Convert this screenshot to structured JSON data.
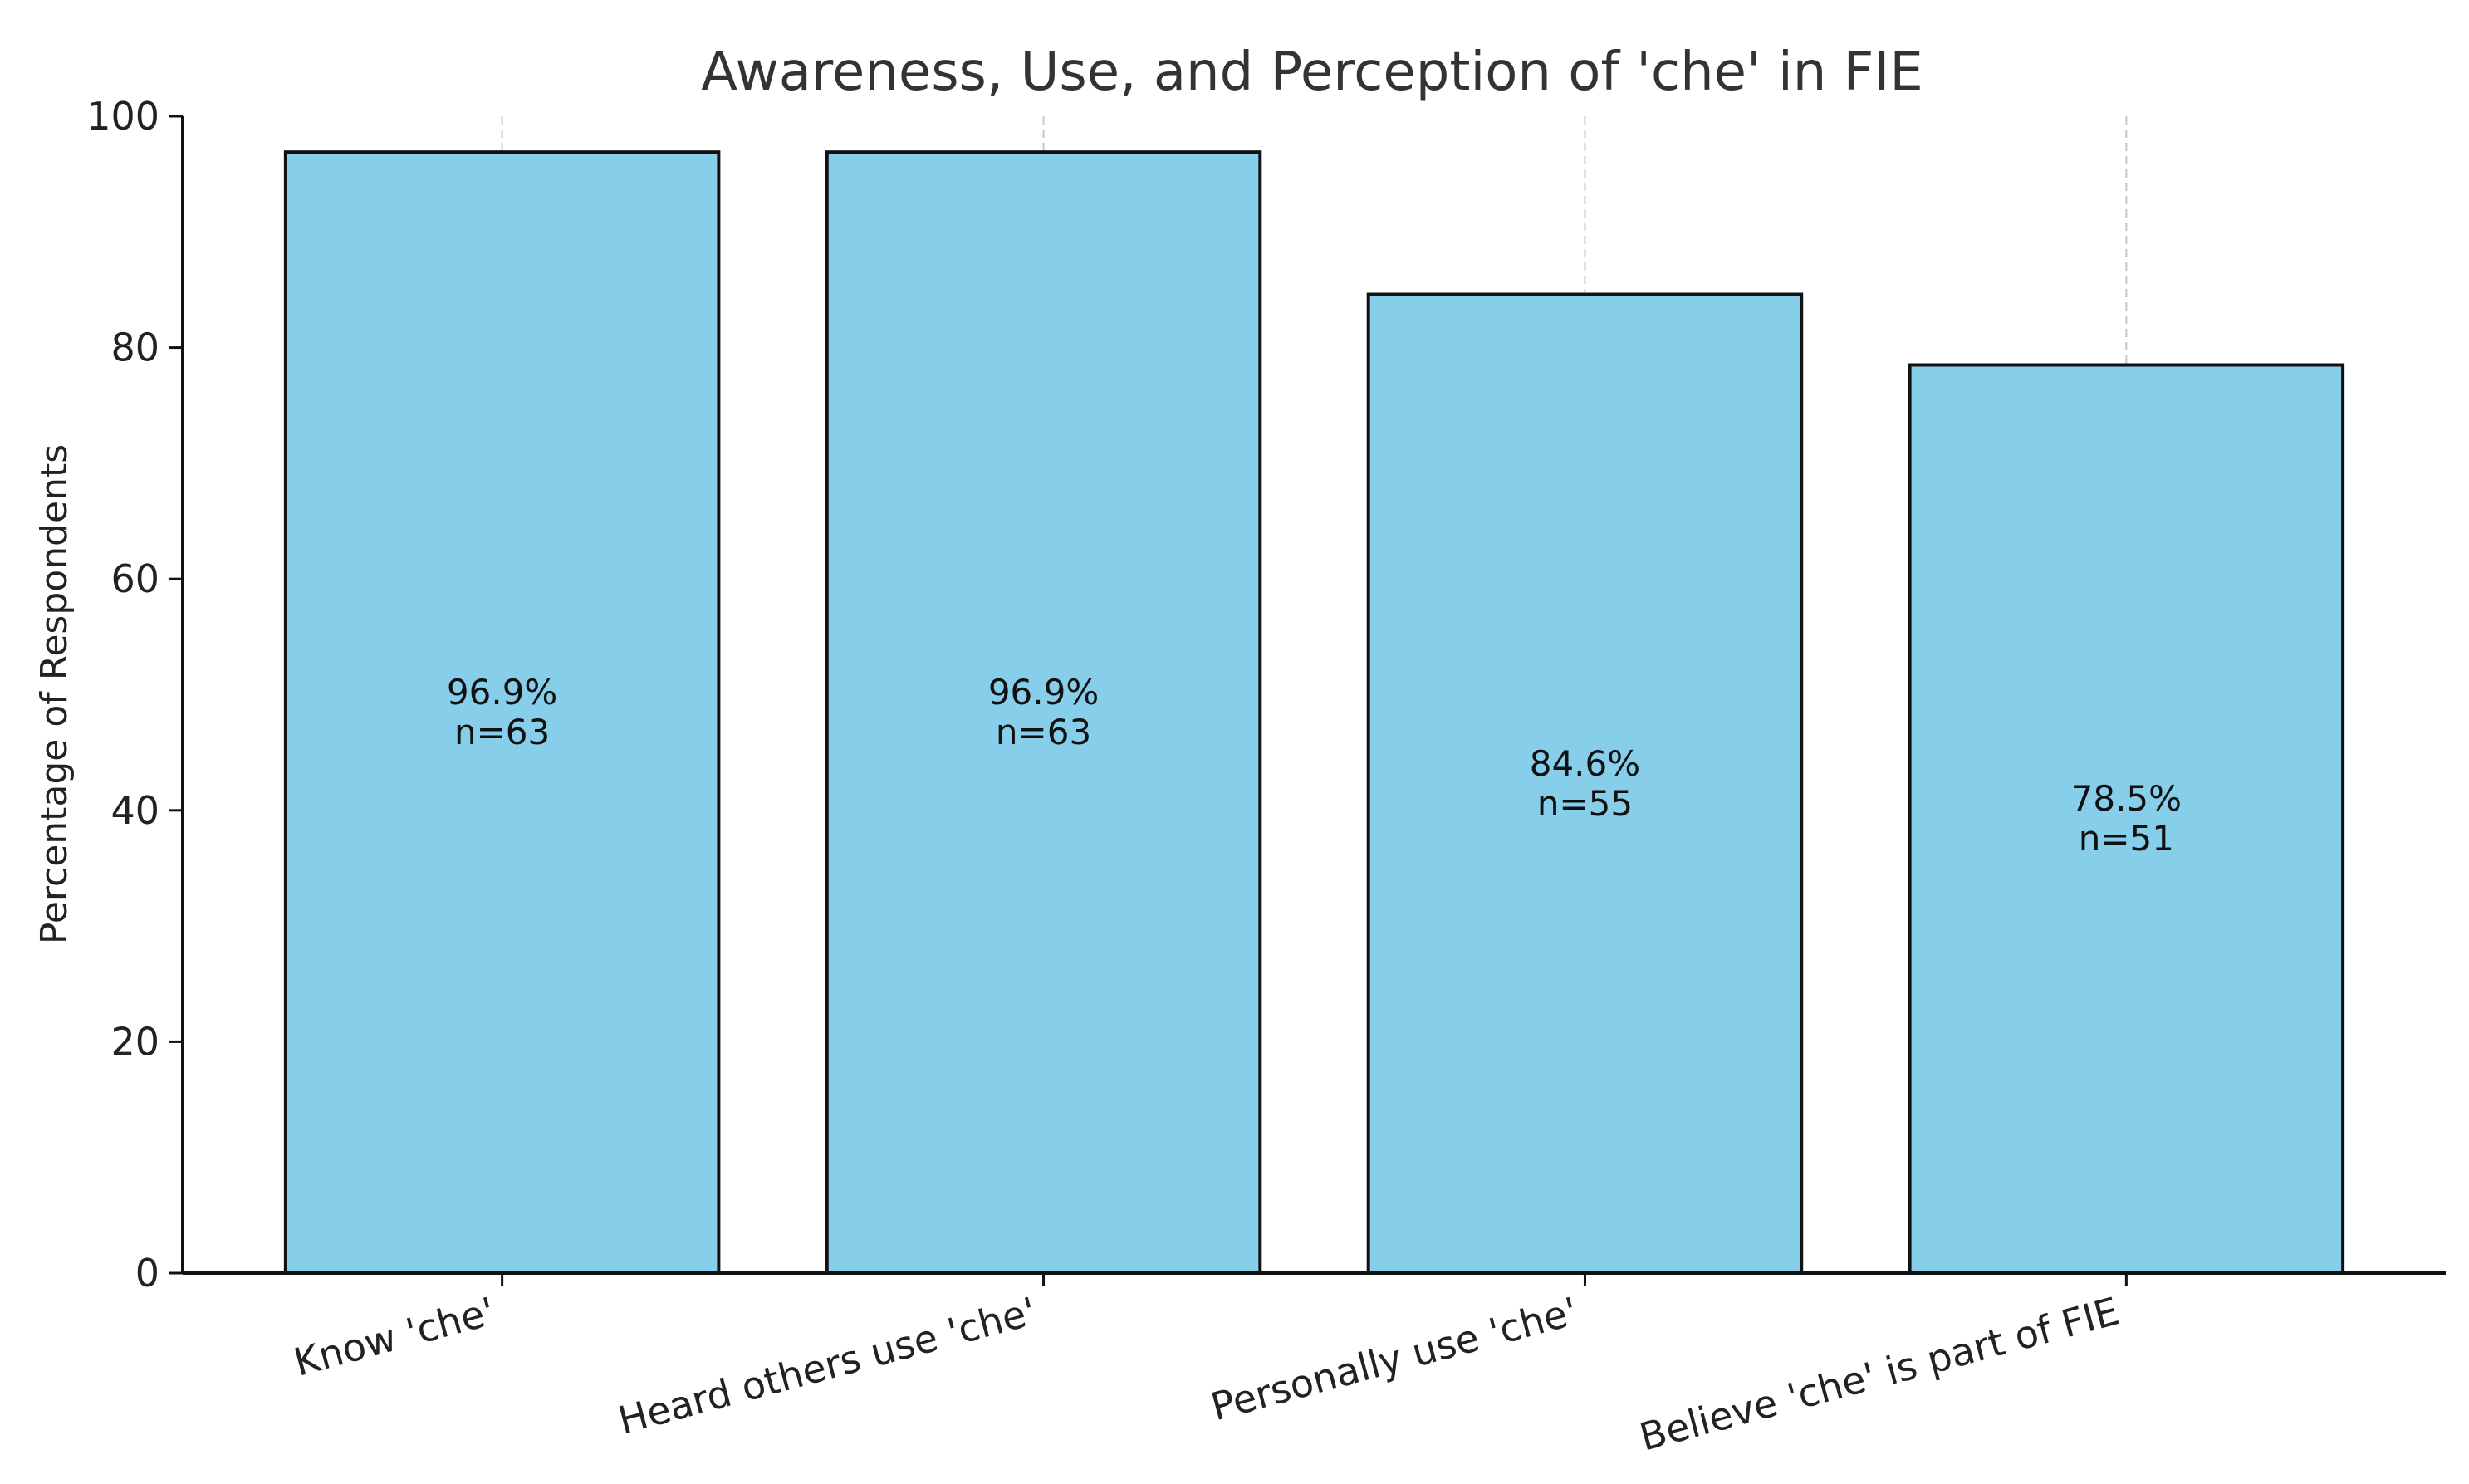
{
  "chart_data": {
    "type": "bar",
    "title": "Awareness, Use, and Perception of 'che' in FIE",
    "xlabel": "",
    "ylabel": "Percentage of Respondents",
    "ylim": [
      0,
      100
    ],
    "yticks": [
      0,
      20,
      40,
      60,
      80,
      100
    ],
    "categories": [
      "Know 'che'",
      "Heard others use 'che'",
      "Personally use 'che'",
      "Believe 'che' is part of FIE"
    ],
    "values": [
      96.9,
      96.9,
      84.6,
      78.5
    ],
    "counts": [
      63,
      63,
      55,
      51
    ],
    "bar_labels": [
      {
        "pct": "96.9%",
        "n": "n=63"
      },
      {
        "pct": "96.9%",
        "n": "n=63"
      },
      {
        "pct": "84.6%",
        "n": "n=55"
      },
      {
        "pct": "78.5%",
        "n": "n=51"
      }
    ],
    "colors": {
      "bar": "#87CEEB",
      "edge": "#111111",
      "grid": "#c8c8c8"
    },
    "grid": {
      "x": true,
      "y": false
    }
  }
}
